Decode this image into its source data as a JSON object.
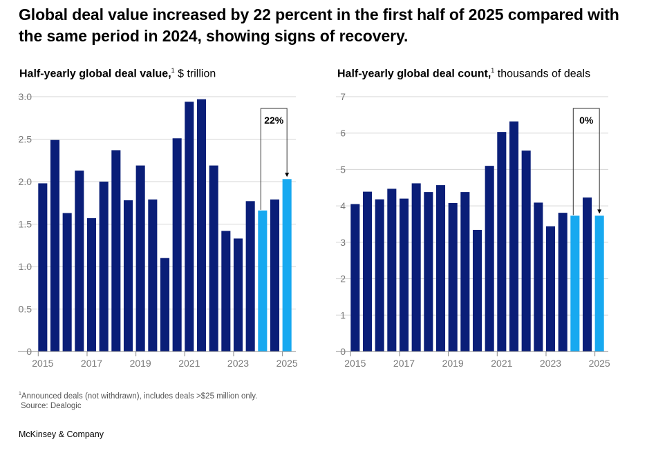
{
  "headline": "Global deal value increased by 22 percent in the first half of 2025 compared with the same period in 2024, showing signs of recovery.",
  "colors": {
    "dark_bar": "#0a1e78",
    "highlight_bar": "#17a9f0",
    "gridline": "#d4d4d4",
    "axis": "#888888"
  },
  "charts": {
    "left": {
      "title_bold": "Half-yearly global deal value,",
      "title_sup": "1",
      "title_rest": " $ trillion"
    },
    "right": {
      "title_bold": "Half-yearly global deal count,",
      "title_sup": "1",
      "title_rest": " thousands of deals"
    }
  },
  "chart_data": [
    {
      "type": "bar",
      "title": "Half-yearly global deal value, $ trillion",
      "categories": [
        "H1 2015",
        "H2 2015",
        "H1 2016",
        "H2 2016",
        "H1 2017",
        "H2 2017",
        "H1 2018",
        "H2 2018",
        "H1 2019",
        "H2 2019",
        "H1 2020",
        "H2 2020",
        "H1 2021",
        "H2 2021",
        "H1 2022",
        "H2 2022",
        "H1 2023",
        "H2 2023",
        "H1 2024",
        "H2 2024",
        "H1 2025"
      ],
      "values": [
        1.98,
        2.49,
        1.63,
        2.13,
        1.57,
        2.0,
        2.37,
        1.78,
        2.19,
        1.79,
        1.1,
        2.51,
        2.94,
        2.97,
        2.19,
        1.42,
        1.33,
        1.77,
        1.66,
        1.79,
        2.03
      ],
      "highlight": [
        18,
        20
      ],
      "x_tick_labels": [
        "2015",
        "2017",
        "2019",
        "2021",
        "2023",
        "2025"
      ],
      "x_tick_positions": [
        0,
        4,
        8,
        12,
        16,
        20
      ],
      "y_ticks": [
        "0",
        "0.5",
        "1.0",
        "1.5",
        "2.0",
        "2.5",
        "3.0"
      ],
      "ylim": [
        0,
        3.0
      ],
      "annotation": {
        "text": "22%",
        "from": 18,
        "to": 20
      },
      "grid": true
    },
    {
      "type": "bar",
      "title": "Half-yearly global deal count, thousands of deals",
      "categories": [
        "H1 2015",
        "H2 2015",
        "H1 2016",
        "H2 2016",
        "H1 2017",
        "H2 2017",
        "H1 2018",
        "H2 2018",
        "H1 2019",
        "H2 2019",
        "H1 2020",
        "H2 2020",
        "H1 2021",
        "H2 2021",
        "H1 2022",
        "H2 2022",
        "H1 2023",
        "H2 2023",
        "H1 2024",
        "H2 2024",
        "H1 2025"
      ],
      "values": [
        4.05,
        4.39,
        4.18,
        4.47,
        4.2,
        4.62,
        4.38,
        4.57,
        4.08,
        4.38,
        3.34,
        5.1,
        6.03,
        6.32,
        5.52,
        4.09,
        3.44,
        3.81,
        3.73,
        4.23,
        3.73
      ],
      "highlight": [
        18,
        20
      ],
      "x_tick_labels": [
        "2015",
        "2017",
        "2019",
        "2021",
        "2023",
        "2025"
      ],
      "x_tick_positions": [
        0,
        4,
        8,
        12,
        16,
        20
      ],
      "y_ticks": [
        "0",
        "1",
        "2",
        "3",
        "4",
        "5",
        "6",
        "7"
      ],
      "ylim": [
        0,
        7
      ],
      "annotation": {
        "text": "0%",
        "from": 18,
        "to": 20
      },
      "grid": true
    }
  ],
  "footnote": {
    "sup": "1",
    "line1": "Announced deals (not withdrawn), includes deals >$25 million only.",
    "line2": "Source: Dealogic"
  },
  "brand": "McKinsey & Company"
}
